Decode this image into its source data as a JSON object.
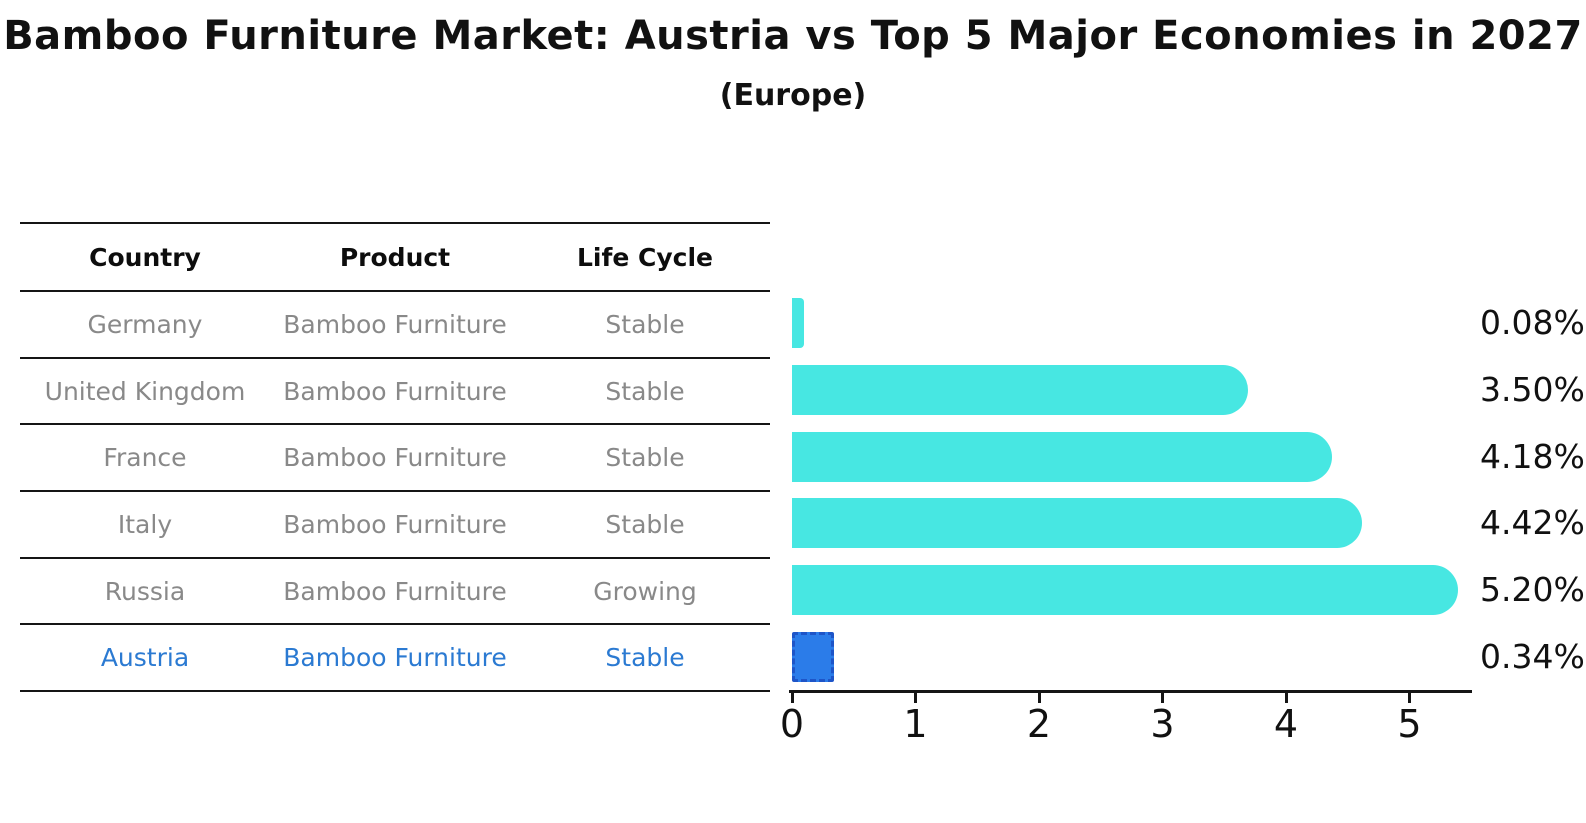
{
  "title": "Bamboo Furniture Market: Austria vs Top 5 Major Economies in 2027",
  "subtitle": "(Europe)",
  "table": {
    "headers": [
      "Country",
      "Product",
      "Life Cycle"
    ],
    "rows": [
      {
        "country": "Germany",
        "product": "Bamboo Furniture",
        "life_cycle": "Stable",
        "highlighted": false
      },
      {
        "country": "United Kingdom",
        "product": "Bamboo Furniture",
        "life_cycle": "Stable",
        "highlighted": false
      },
      {
        "country": "France",
        "product": "Bamboo Furniture",
        "life_cycle": "Stable",
        "highlighted": false
      },
      {
        "country": "Italy",
        "product": "Bamboo Furniture",
        "life_cycle": "Stable",
        "highlighted": false
      },
      {
        "country": "Russia",
        "product": "Bamboo Furniture",
        "life_cycle": "Growing",
        "highlighted": false
      },
      {
        "country": "Austria",
        "product": "Bamboo Furniture",
        "life_cycle": "Stable",
        "highlighted": true
      }
    ]
  },
  "chart_data": {
    "type": "bar",
    "orientation": "horizontal",
    "title": "Bamboo Furniture Market: Austria vs Top 5 Major Economies in 2027",
    "subtitle": "(Europe)",
    "categories": [
      "Germany",
      "United Kingdom",
      "France",
      "Italy",
      "Russia",
      "Austria"
    ],
    "values": [
      0.08,
      3.5,
      4.18,
      4.42,
      5.2,
      0.34
    ],
    "value_labels": [
      "0.08%",
      "3.50%",
      "4.18%",
      "4.42%",
      "5.20%",
      "0.34%"
    ],
    "xlabel": "",
    "ylabel": "",
    "xlim": [
      0,
      5.5
    ],
    "x_ticks": [
      "0",
      "1",
      "2",
      "3",
      "4",
      "5"
    ],
    "grid": false,
    "legend": false,
    "highlight_index": 5
  },
  "colors": {
    "bar": "#47e7e2",
    "highlight_bar": "#2b7ce9",
    "highlight_border": "#1e55c8",
    "highlight_text": "#2b7ad2",
    "cell_text": "#898989",
    "header_text": "#0d0d0d",
    "axis": "#151515"
  }
}
